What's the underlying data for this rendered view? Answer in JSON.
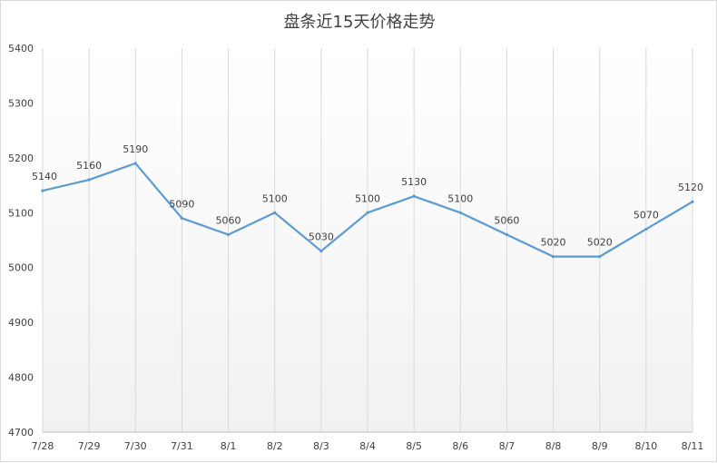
{
  "chart_data": {
    "type": "line",
    "title": "盘条近15天价格走势",
    "categories": [
      "7/28",
      "7/29",
      "7/30",
      "7/31",
      "8/1",
      "8/2",
      "8/3",
      "8/4",
      "8/5",
      "8/6",
      "8/7",
      "8/8",
      "8/9",
      "8/10",
      "8/11"
    ],
    "values": [
      5140,
      5160,
      5190,
      5090,
      5060,
      5100,
      5030,
      5100,
      5130,
      5100,
      5060,
      5020,
      5020,
      5070,
      5120
    ],
    "ylim": [
      4700,
      5400
    ],
    "yticks": [
      "4700",
      "4800",
      "4900",
      "5000",
      "5100",
      "5200",
      "5300",
      "5400"
    ],
    "xlabel": "",
    "ylabel": "",
    "grid": "vertical",
    "line_color": "#5B9BD5",
    "data_labels": true
  }
}
